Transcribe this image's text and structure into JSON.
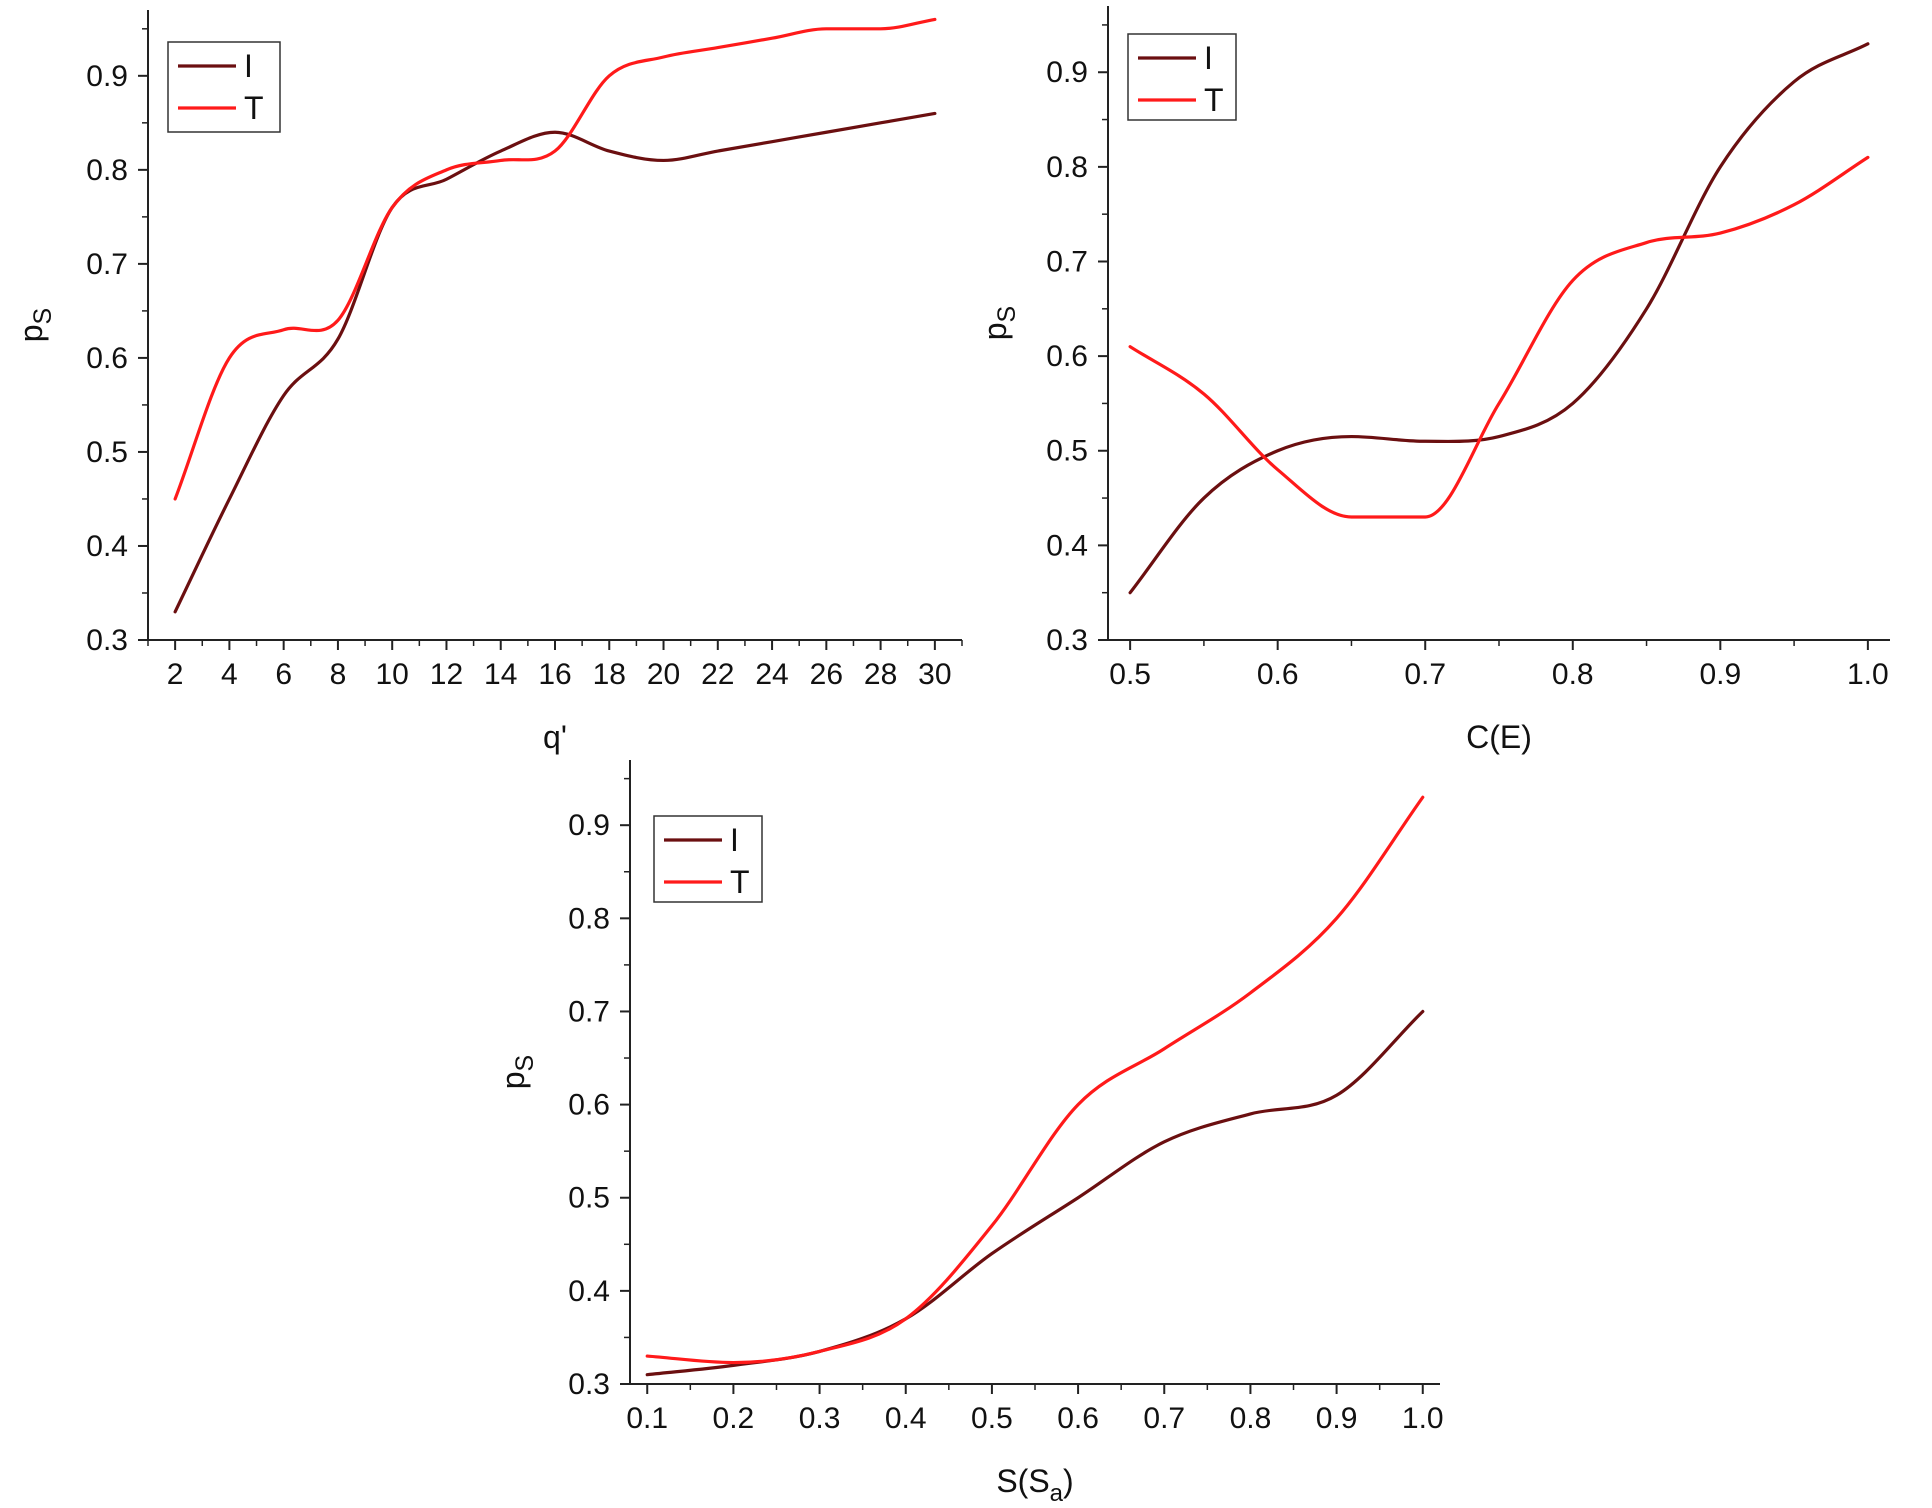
{
  "colors": {
    "I": "#6b0f10",
    "T": "#ff1a1a",
    "axis": "#222222"
  },
  "chart_data": [
    {
      "type": "line",
      "xlabel": "q'",
      "ylabel": "p",
      "ylabel_sub": "S",
      "xlim": [
        1,
        31
      ],
      "ylim": [
        0.3,
        0.97
      ],
      "xticks": [
        2,
        4,
        6,
        8,
        10,
        12,
        14,
        16,
        18,
        20,
        22,
        24,
        26,
        28,
        30
      ],
      "xtick_labels": [
        "2",
        "4",
        "6",
        "8",
        "10",
        "12",
        "14",
        "16",
        "18",
        "20",
        "22",
        "24",
        "26",
        "28",
        "30"
      ],
      "yticks": [
        0.3,
        0.4,
        0.5,
        0.6,
        0.7,
        0.8,
        0.9
      ],
      "ytick_labels": [
        "0.3",
        "0.4",
        "0.5",
        "0.6",
        "0.7",
        "0.8",
        "0.9"
      ],
      "legend": "top-left",
      "series": [
        {
          "name": "I",
          "x": [
            2,
            4,
            6,
            8,
            10,
            12,
            14,
            16,
            18,
            20,
            22,
            24,
            26,
            28,
            30
          ],
          "values": [
            0.33,
            0.45,
            0.56,
            0.62,
            0.76,
            0.79,
            0.82,
            0.84,
            0.82,
            0.81,
            0.82,
            0.83,
            0.84,
            0.85,
            0.86
          ]
        },
        {
          "name": "T",
          "x": [
            2,
            4,
            6,
            8,
            10,
            12,
            14,
            16,
            18,
            20,
            22,
            24,
            26,
            28,
            30
          ],
          "values": [
            0.45,
            0.6,
            0.63,
            0.64,
            0.76,
            0.8,
            0.81,
            0.82,
            0.9,
            0.92,
            0.93,
            0.94,
            0.95,
            0.95,
            0.96
          ]
        }
      ]
    },
    {
      "type": "line",
      "xlabel": "C(E)",
      "ylabel": "p",
      "ylabel_sub": "S",
      "xlim": [
        0.485,
        1.015
      ],
      "ylim": [
        0.3,
        0.97
      ],
      "xticks": [
        0.5,
        0.6,
        0.7,
        0.8,
        0.9,
        1.0
      ],
      "xtick_labels": [
        "0.5",
        "0.6",
        "0.7",
        "0.8",
        "0.9",
        "1.0"
      ],
      "yticks": [
        0.3,
        0.4,
        0.5,
        0.6,
        0.7,
        0.8,
        0.9
      ],
      "ytick_labels": [
        "0.3",
        "0.4",
        "0.5",
        "0.6",
        "0.7",
        "0.8",
        "0.9"
      ],
      "legend": "top-left",
      "series": [
        {
          "name": "I",
          "x": [
            0.5,
            0.55,
            0.6,
            0.65,
            0.7,
            0.75,
            0.8,
            0.85,
            0.9,
            0.95,
            1.0
          ],
          "values": [
            0.35,
            0.45,
            0.5,
            0.515,
            0.51,
            0.515,
            0.55,
            0.65,
            0.8,
            0.89,
            0.93
          ]
        },
        {
          "name": "T",
          "x": [
            0.5,
            0.55,
            0.6,
            0.65,
            0.7,
            0.75,
            0.8,
            0.85,
            0.9,
            0.95,
            1.0
          ],
          "values": [
            0.61,
            0.56,
            0.48,
            0.43,
            0.43,
            0.55,
            0.68,
            0.72,
            0.73,
            0.76,
            0.81
          ]
        }
      ]
    },
    {
      "type": "line",
      "xlabel": "S(S",
      "xlabel_sub": "a",
      "xlabel_tail": ")",
      "ylabel": "p",
      "ylabel_sub": "S",
      "xlim": [
        0.08,
        1.02
      ],
      "ylim": [
        0.3,
        0.97
      ],
      "xticks": [
        0.1,
        0.2,
        0.3,
        0.4,
        0.5,
        0.6,
        0.7,
        0.8,
        0.9,
        1.0
      ],
      "xtick_labels": [
        "0.1",
        "0.2",
        "0.3",
        "0.4",
        "0.5",
        "0.6",
        "0.7",
        "0.8",
        "0.9",
        "1.0"
      ],
      "yticks": [
        0.3,
        0.4,
        0.5,
        0.6,
        0.7,
        0.8,
        0.9
      ],
      "ytick_labels": [
        "0.3",
        "0.4",
        "0.5",
        "0.6",
        "0.7",
        "0.8",
        "0.9"
      ],
      "legend": "top-left",
      "series": [
        {
          "name": "I",
          "x": [
            0.1,
            0.2,
            0.3,
            0.4,
            0.5,
            0.6,
            0.7,
            0.8,
            0.9,
            1.0
          ],
          "values": [
            0.31,
            0.32,
            0.335,
            0.37,
            0.44,
            0.5,
            0.56,
            0.59,
            0.61,
            0.7
          ]
        },
        {
          "name": "T",
          "x": [
            0.1,
            0.2,
            0.3,
            0.4,
            0.5,
            0.6,
            0.7,
            0.8,
            0.9,
            1.0
          ],
          "values": [
            0.33,
            0.323,
            0.335,
            0.37,
            0.47,
            0.6,
            0.66,
            0.72,
            0.8,
            0.93
          ]
        }
      ]
    }
  ]
}
